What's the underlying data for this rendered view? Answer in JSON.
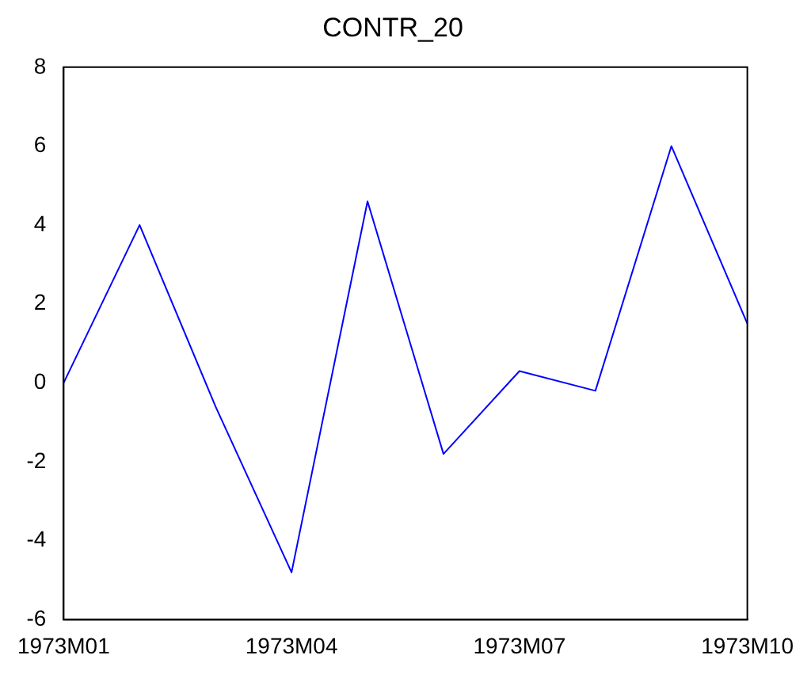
{
  "chart_data": {
    "type": "line",
    "title": "CONTR_20",
    "categories": [
      "1973M01",
      null,
      null,
      "1973M04",
      null,
      null,
      "1973M07",
      null,
      null,
      "1973M10"
    ],
    "series": [
      {
        "color": "#0000ff",
        "values": [
          0,
          4.0,
          -0.6,
          -4.8,
          4.6,
          -1.8,
          0.3,
          -0.2,
          6.0,
          1.5
        ]
      }
    ],
    "ylim": [
      -6,
      8
    ],
    "yticks": [
      -6,
      -4,
      -2,
      0,
      2,
      4,
      6,
      8
    ],
    "grid": false,
    "legend": false,
    "marker": "none",
    "line_style": "solid"
  }
}
